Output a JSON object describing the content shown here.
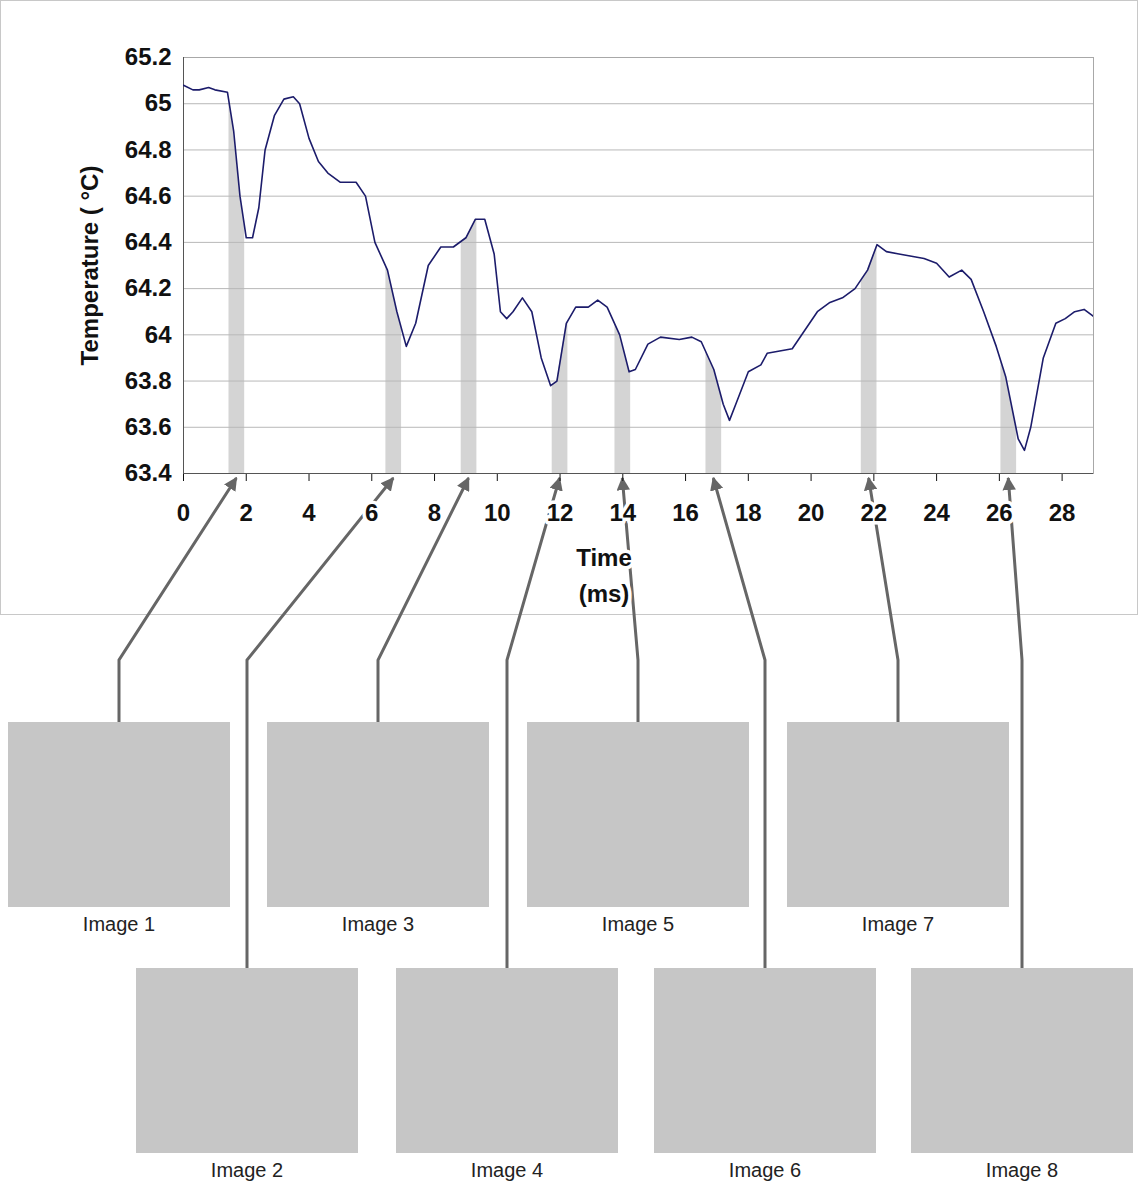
{
  "chart_data": {
    "type": "line",
    "xlabel": "Time (ms)",
    "ylabel": "Temperature ( °C)",
    "xlim": [
      0,
      29
    ],
    "xticks": [
      0,
      2,
      4,
      6,
      8,
      10,
      12,
      14,
      16,
      18,
      20,
      22,
      24,
      26,
      28
    ],
    "ylim": [
      63.4,
      65.2
    ],
    "yticks": [
      63.4,
      63.6,
      63.8,
      64,
      64.2,
      64.4,
      64.6,
      64.8,
      65,
      65.2
    ],
    "grid": true,
    "color": "#1c1c6b",
    "x": [
      0,
      0.3,
      0.5,
      0.8,
      1,
      1.4,
      1.6,
      1.8,
      2,
      2.2,
      2.4,
      2.6,
      2.9,
      3.2,
      3.5,
      3.7,
      4,
      4.3,
      4.6,
      5,
      5.5,
      5.8,
      6.1,
      6.5,
      6.8,
      7.1,
      7.4,
      7.8,
      8.2,
      8.6,
      9,
      9.3,
      9.6,
      9.9,
      10.1,
      10.3,
      10.5,
      10.8,
      11.1,
      11.4,
      11.7,
      11.9,
      12.2,
      12.5,
      12.9,
      13.2,
      13.5,
      13.9,
      14.2,
      14.4,
      14.8,
      15.2,
      15.8,
      16.2,
      16.5,
      16.9,
      17.2,
      17.4,
      17.6,
      18,
      18.4,
      18.6,
      19,
      19.4,
      19.8,
      20.2,
      20.6,
      21,
      21.4,
      21.8,
      22.1,
      22.4,
      22.8,
      23.2,
      23.6,
      24,
      24.4,
      24.8,
      25.1,
      25.5,
      25.9,
      26.2,
      26.6,
      26.8,
      27,
      27.4,
      27.8,
      28.1,
      28.4,
      28.7,
      29
    ],
    "values": [
      65.08,
      65.06,
      65.06,
      65.07,
      65.06,
      65.05,
      64.88,
      64.6,
      64.42,
      64.42,
      64.55,
      64.8,
      64.95,
      65.02,
      65.03,
      65,
      64.85,
      64.75,
      64.7,
      64.66,
      64.66,
      64.6,
      64.4,
      64.28,
      64.1,
      63.95,
      64.05,
      64.3,
      64.38,
      64.38,
      64.42,
      64.5,
      64.5,
      64.35,
      64.1,
      64.07,
      64.1,
      64.16,
      64.1,
      63.9,
      63.78,
      63.8,
      64.05,
      64.12,
      64.12,
      64.15,
      64.12,
      64,
      63.84,
      63.85,
      63.96,
      63.99,
      63.98,
      63.99,
      63.97,
      63.85,
      63.7,
      63.63,
      63.7,
      63.84,
      63.87,
      63.92,
      63.93,
      63.94,
      64.02,
      64.1,
      64.14,
      64.16,
      64.2,
      64.28,
      64.39,
      64.36,
      64.35,
      64.34,
      64.33,
      64.31,
      64.25,
      64.28,
      64.24,
      64.1,
      63.95,
      63.82,
      63.55,
      63.5,
      63.6,
      63.9,
      64.05,
      64.07,
      64.1,
      64.11,
      64.08
    ],
    "images": [
      {
        "label": "Image 1",
        "band": [
          1.45,
          1.95
        ]
      },
      {
        "label": "Image 2",
        "band": [
          6.45,
          6.95
        ]
      },
      {
        "label": "Image 3",
        "band": [
          8.85,
          9.35
        ]
      },
      {
        "label": "Image 4",
        "band": [
          11.75,
          12.25
        ]
      },
      {
        "label": "Image 5",
        "band": [
          13.75,
          14.25
        ]
      },
      {
        "label": "Image 6",
        "band": [
          16.65,
          17.15
        ]
      },
      {
        "label": "Image 7",
        "band": [
          21.6,
          22.1
        ]
      },
      {
        "label": "Image 8",
        "band": [
          26.05,
          26.55
        ]
      }
    ]
  }
}
